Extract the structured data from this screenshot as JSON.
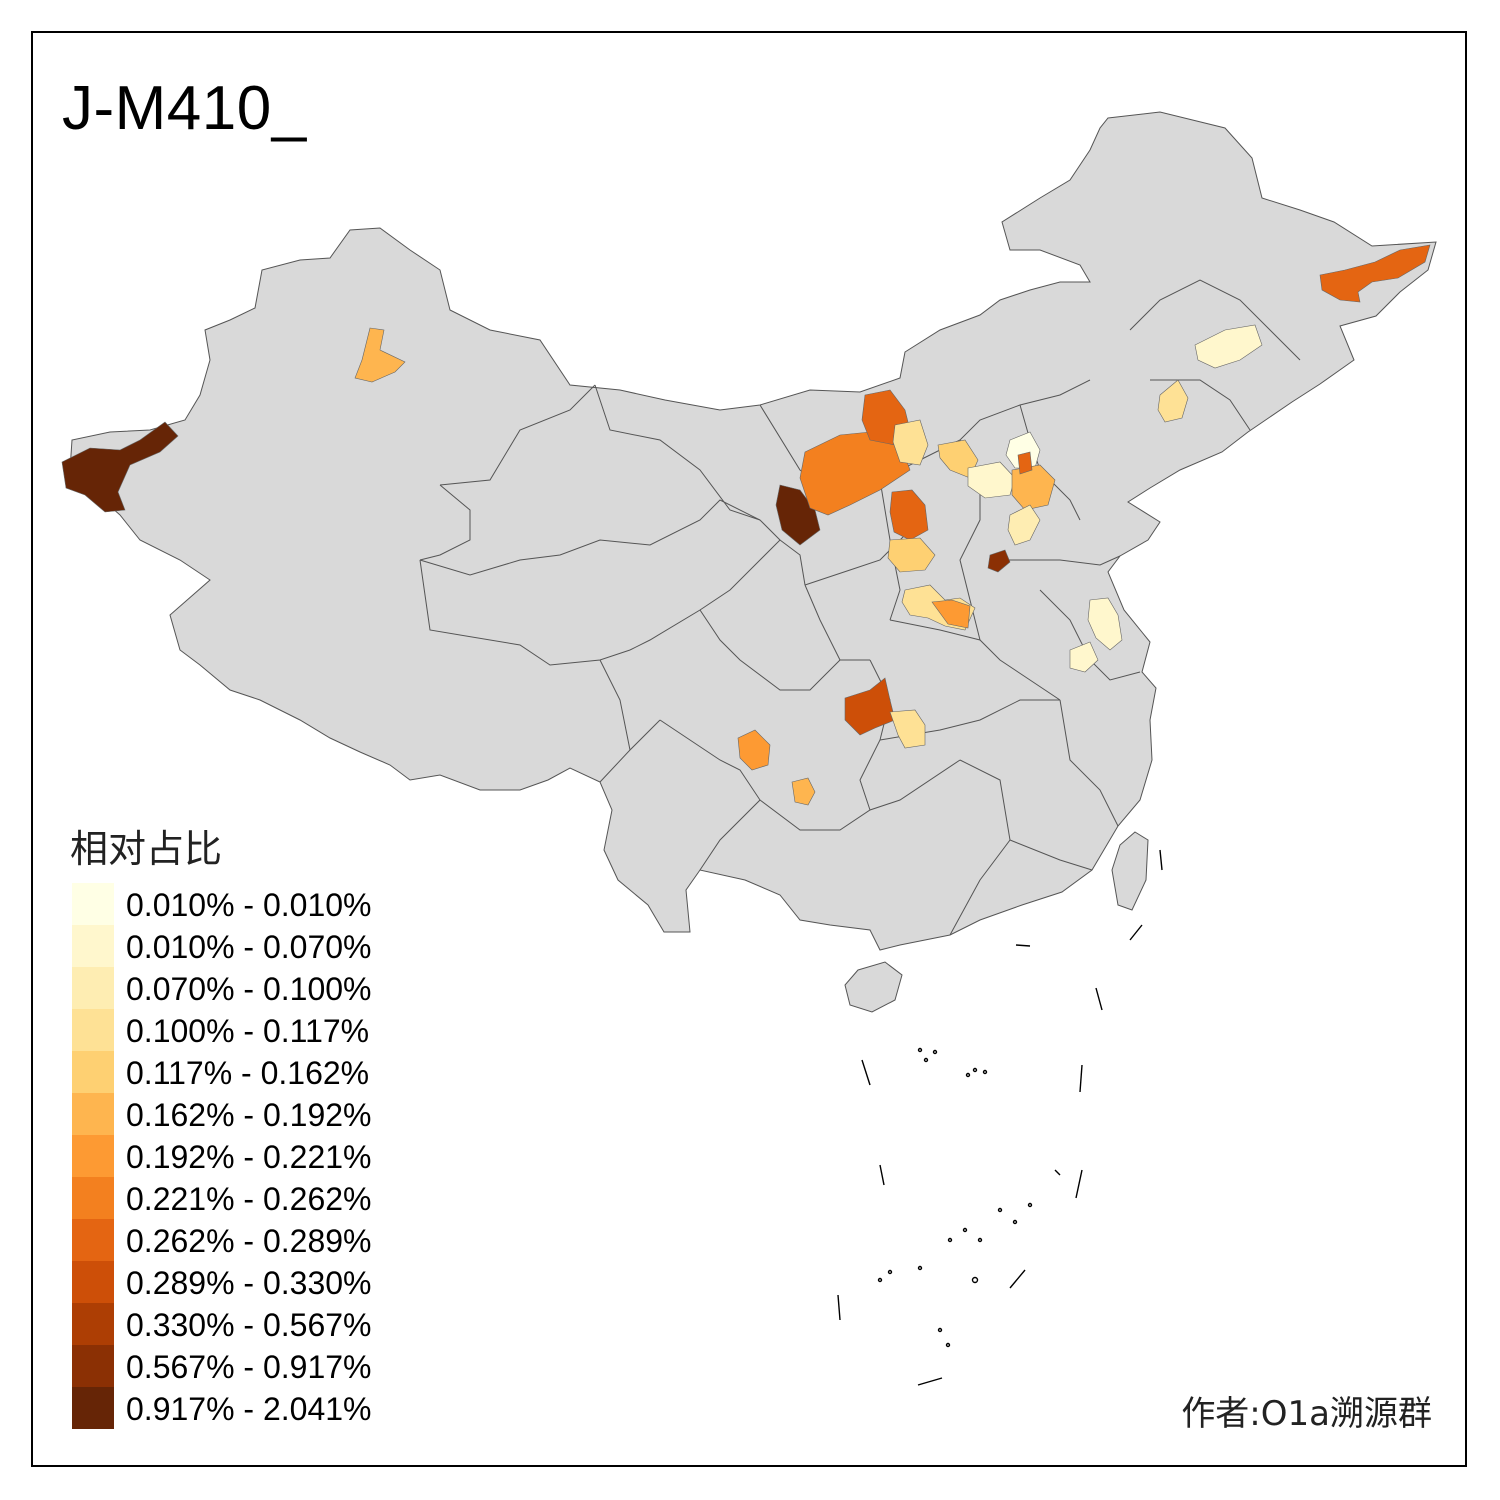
{
  "title": "J-M410_",
  "legend": {
    "title": "相对占比",
    "items": [
      {
        "label": "0.010% - 0.010%",
        "color": "#FFFFE5"
      },
      {
        "label": "0.010% - 0.070%",
        "color": "#FFF7CD"
      },
      {
        "label": "0.070% - 0.100%",
        "color": "#FEEDB2"
      },
      {
        "label": "0.100% - 0.117%",
        "color": "#FEE195"
      },
      {
        "label": "0.117% - 0.162%",
        "color": "#FED072"
      },
      {
        "label": "0.162% - 0.192%",
        "color": "#FEB54F"
      },
      {
        "label": "0.192% - 0.221%",
        "color": "#FD9A33"
      },
      {
        "label": "0.221% - 0.262%",
        "color": "#F3801F"
      },
      {
        "label": "0.262% - 0.289%",
        "color": "#E46512"
      },
      {
        "label": "0.289% - 0.330%",
        "color": "#CD4F08"
      },
      {
        "label": "0.330% - 0.567%",
        "color": "#AD3E04"
      },
      {
        "label": "0.567% - 0.917%",
        "color": "#8B3004"
      },
      {
        "label": "0.917% - 2.041%",
        "color": "#662506"
      }
    ]
  },
  "credit": "作者:O1a溯源群",
  "colors": {
    "land": "#D9D9D9",
    "border": "#555555",
    "frame": "#000000"
  }
}
